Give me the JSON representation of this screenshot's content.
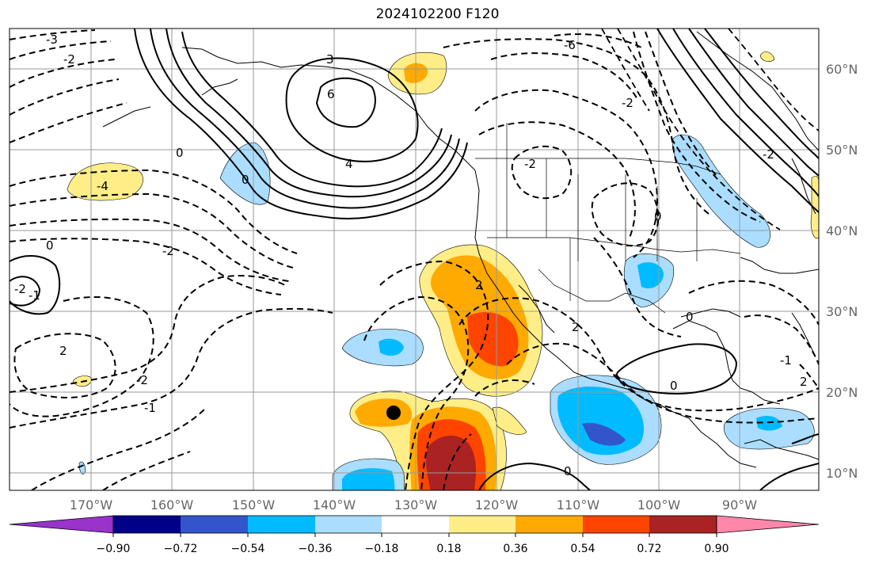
{
  "title": "2024102200 F120",
  "map": {
    "lon_ticks": [
      "170°W",
      "160°W",
      "150°W",
      "140°W",
      "130°W",
      "120°W",
      "110°W",
      "100°W",
      "90°W"
    ],
    "lat_ticks": [
      "60°N",
      "50°N",
      "40°N",
      "30°N",
      "20°N",
      "10°N"
    ],
    "contour_labels": [
      "-3",
      "-2",
      "3",
      "6",
      "4",
      "0",
      "-4",
      "0",
      "-2",
      "0",
      "-2",
      "-1",
      "2",
      "-2",
      "-1",
      "2",
      "0",
      "-2",
      "2",
      "0",
      "-1",
      "2",
      "0",
      "0",
      "-6",
      "-2",
      "-2"
    ]
  },
  "colorbar": {
    "ticks": [
      "−0.90",
      "−0.72",
      "−0.54",
      "−0.36",
      "−0.18",
      "0.18",
      "0.36",
      "0.54",
      "0.72",
      "0.90"
    ],
    "colors": [
      "#9933cc",
      "#000088",
      "#3355cc",
      "#00bbff",
      "#aaddff",
      "#ffffff",
      "#ffee88",
      "#ffaa00",
      "#ff4400",
      "#aa2222",
      "#ff88aa"
    ]
  }
}
